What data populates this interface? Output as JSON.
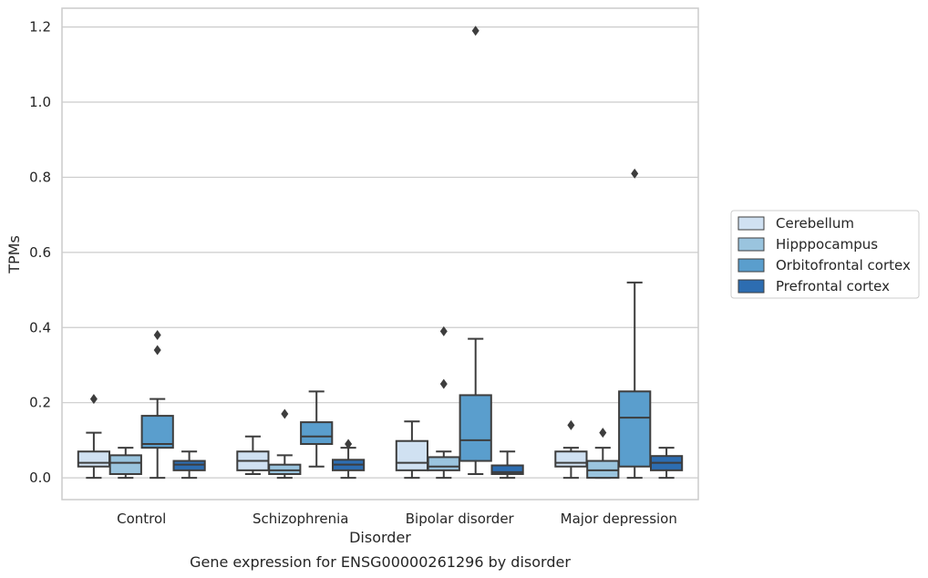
{
  "chart_data": {
    "type": "box",
    "xlabel": "Disorder",
    "ylabel": "TPMs",
    "caption": "Gene expression for ENSG00000261296 by disorder",
    "ylim": [
      -0.058,
      1.25
    ],
    "yticks": [
      "0.0",
      "0.2",
      "0.4",
      "0.6",
      "0.8",
      "1.0",
      "1.2"
    ],
    "ytick_values": [
      0.0,
      0.2,
      0.4,
      0.6,
      0.8,
      1.0,
      1.2
    ],
    "grid": "horizontal",
    "legend_position": "right",
    "categories": [
      "Control",
      "Schizophrenia",
      "Bipolar disorder",
      "Major depression"
    ],
    "series": [
      {
        "name": "Cerebellum",
        "color": "#d0e1f2",
        "boxes": [
          {
            "whislo": 0.0,
            "q1": 0.03,
            "med": 0.04,
            "q3": 0.07,
            "whishi": 0.12,
            "fliers": [
              0.21
            ]
          },
          {
            "whislo": 0.01,
            "q1": 0.02,
            "med": 0.045,
            "q3": 0.07,
            "whishi": 0.11,
            "fliers": []
          },
          {
            "whislo": 0.0,
            "q1": 0.02,
            "med": 0.04,
            "q3": 0.098,
            "whishi": 0.15,
            "fliers": []
          },
          {
            "whislo": 0.0,
            "q1": 0.03,
            "med": 0.04,
            "q3": 0.07,
            "whishi": 0.08,
            "fliers": [
              0.14
            ]
          }
        ]
      },
      {
        "name": "Hipppocampus",
        "color": "#9ac4de",
        "boxes": [
          {
            "whislo": 0.0,
            "q1": 0.01,
            "med": 0.04,
            "q3": 0.06,
            "whishi": 0.08,
            "fliers": []
          },
          {
            "whislo": 0.0,
            "q1": 0.01,
            "med": 0.02,
            "q3": 0.035,
            "whishi": 0.06,
            "fliers": [
              0.17
            ]
          },
          {
            "whislo": 0.0,
            "q1": 0.02,
            "med": 0.03,
            "q3": 0.055,
            "whishi": 0.07,
            "fliers": [
              0.25,
              0.39
            ]
          },
          {
            "whislo": 0.0,
            "q1": 0.0,
            "med": 0.02,
            "q3": 0.045,
            "whishi": 0.08,
            "fliers": [
              0.12
            ]
          }
        ]
      },
      {
        "name": "Orbitofrontal cortex",
        "color": "#5a9ecd",
        "boxes": [
          {
            "whislo": 0.0,
            "q1": 0.08,
            "med": 0.09,
            "q3": 0.165,
            "whishi": 0.21,
            "fliers": [
              0.34,
              0.38
            ]
          },
          {
            "whislo": 0.03,
            "q1": 0.09,
            "med": 0.11,
            "q3": 0.148,
            "whishi": 0.23,
            "fliers": []
          },
          {
            "whislo": 0.01,
            "q1": 0.045,
            "med": 0.1,
            "q3": 0.22,
            "whishi": 0.37,
            "fliers": [
              1.19
            ]
          },
          {
            "whislo": 0.0,
            "q1": 0.03,
            "med": 0.16,
            "q3": 0.23,
            "whishi": 0.52,
            "fliers": [
              0.81
            ]
          }
        ]
      },
      {
        "name": "Prefrontal cortex",
        "color": "#2d6db1",
        "boxes": [
          {
            "whislo": 0.0,
            "q1": 0.02,
            "med": 0.035,
            "q3": 0.045,
            "whishi": 0.07,
            "fliers": []
          },
          {
            "whislo": 0.0,
            "q1": 0.02,
            "med": 0.035,
            "q3": 0.048,
            "whishi": 0.08,
            "fliers": [
              0.09
            ]
          },
          {
            "whislo": 0.0,
            "q1": 0.01,
            "med": 0.015,
            "q3": 0.033,
            "whishi": 0.07,
            "fliers": []
          },
          {
            "whislo": 0.0,
            "q1": 0.02,
            "med": 0.04,
            "q3": 0.058,
            "whishi": 0.08,
            "fliers": []
          }
        ]
      }
    ]
  }
}
